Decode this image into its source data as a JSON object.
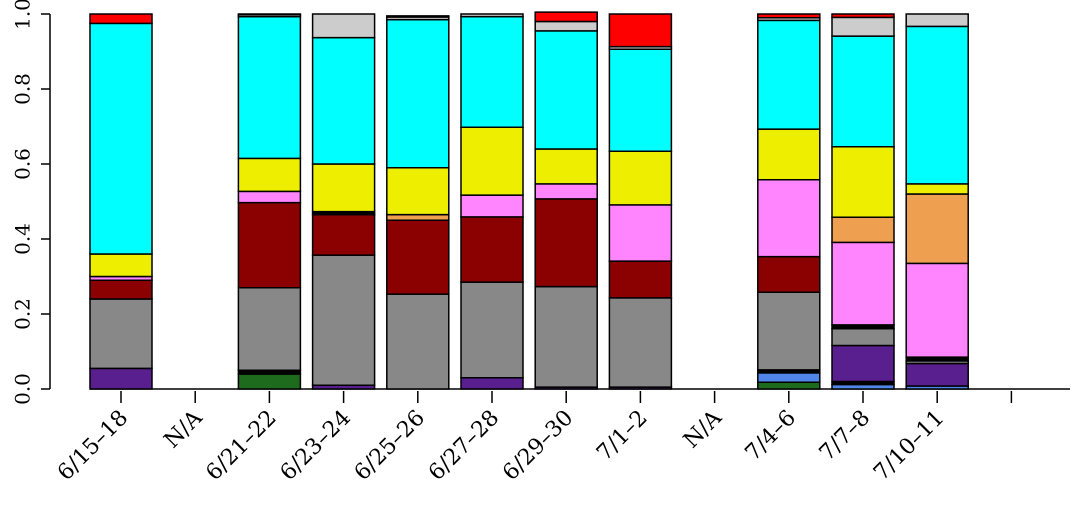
{
  "chart_data": {
    "type": "bar",
    "stacked": true,
    "normalized": true,
    "title": "",
    "xlabel": "",
    "ylabel": "",
    "ylim": [
      0,
      1
    ],
    "yticks": [
      "0.0",
      "0.2",
      "0.4",
      "0.6",
      "0.8",
      "1.0"
    ],
    "grid": false,
    "legend": "none",
    "categories": [
      "6/15–18",
      "N/A",
      "6/21–22",
      "6/23–24",
      "6/25–26",
      "6/27–28",
      "6/29–30",
      "7/1–2",
      "N/A",
      "7/4–6",
      "7/7–8",
      "7/10–11",
      ""
    ],
    "series": [
      {
        "color": "#1e6b1e",
        "values": [
          0,
          0,
          0.04,
          0,
          0,
          0,
          0,
          0,
          0,
          0.018,
          0,
          0,
          0
        ]
      },
      {
        "color": "#4f86e8",
        "values": [
          0,
          0,
          0,
          0,
          0,
          0,
          0,
          0,
          0,
          0.025,
          0.012,
          0.008,
          0
        ]
      },
      {
        "color": "#000000",
        "values": [
          0,
          0,
          0.01,
          0,
          0,
          0,
          0,
          0,
          0,
          0.008,
          0.008,
          0,
          0
        ]
      },
      {
        "color": "#5a1f8f",
        "values": [
          0.055,
          0,
          0,
          0.01,
          0,
          0.03,
          0.005,
          0.005,
          0,
          0,
          0.096,
          0.06,
          0
        ]
      },
      {
        "color": "#888888",
        "values": [
          0.185,
          0,
          0.22,
          0.347,
          0.253,
          0.255,
          0.268,
          0.238,
          0,
          0.207,
          0.045,
          0.007,
          0
        ]
      },
      {
        "color": "#000000",
        "values": [
          0,
          0,
          0,
          0,
          0,
          0,
          0,
          0,
          0,
          0,
          0.01,
          0.01,
          0
        ]
      },
      {
        "color": "#8b0000",
        "values": [
          0.05,
          0,
          0.227,
          0.108,
          0.197,
          0.174,
          0.234,
          0.098,
          0,
          0.095,
          0,
          0,
          0
        ]
      },
      {
        "color": "#ff85ff",
        "values": [
          0.01,
          0,
          0.03,
          0,
          0,
          0.058,
          0.04,
          0.15,
          0,
          0.205,
          0.22,
          0.25,
          0
        ]
      },
      {
        "color": "#ef9f50",
        "values": [
          0,
          0,
          0,
          0,
          0.015,
          0,
          0,
          0,
          0,
          0,
          0.067,
          0.185,
          0
        ]
      },
      {
        "color": "#000000",
        "values": [
          0,
          0,
          0,
          0.008,
          0,
          0,
          0,
          0,
          0,
          0,
          0,
          0,
          0
        ]
      },
      {
        "color": "#eeee00",
        "values": [
          0.06,
          0,
          0.088,
          0.127,
          0.125,
          0.181,
          0.093,
          0.143,
          0,
          0.135,
          0.188,
          0.027,
          0
        ]
      },
      {
        "color": "#00ffff",
        "values": [
          0.615,
          0,
          0.378,
          0.337,
          0.395,
          0.295,
          0.315,
          0.272,
          0,
          0.29,
          0.295,
          0.42,
          0
        ]
      },
      {
        "color": "#cccccc",
        "values": [
          0,
          0,
          0.005,
          0.063,
          0.007,
          0.007,
          0.025,
          0.007,
          0,
          0.007,
          0.05,
          0.033,
          0
        ]
      },
      {
        "color": "#ff0000",
        "values": [
          0.025,
          0,
          0.002,
          0,
          0.003,
          0.0,
          0.025,
          0.087,
          0,
          0.01,
          0.009,
          0,
          0
        ]
      }
    ]
  }
}
